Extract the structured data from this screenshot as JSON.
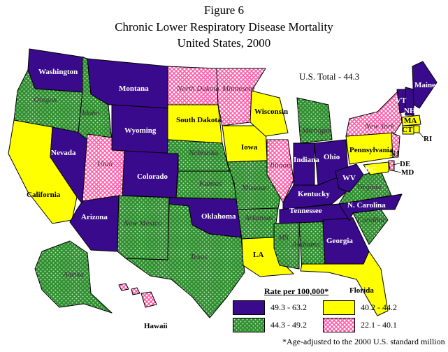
{
  "header": {
    "figure": "Figure 6",
    "title": "Chronic Lower Respiratory Disease Mortality",
    "subtitle": "United States, 2000"
  },
  "us_total": "U.S. Total - 44.3",
  "legend": {
    "title": "Rate per 100,000*",
    "items": [
      {
        "range": "49.3 - 63.2",
        "color": "#3a0a8c",
        "pattern": "solid"
      },
      {
        "range": "40.2 - 44.2",
        "color": "#ffff00",
        "pattern": "solid"
      },
      {
        "range": "44.3 - 49.2",
        "color": "#2f8f2f",
        "pattern": "dots"
      },
      {
        "range": "22.1 - 40.1",
        "color": "#ff69b4",
        "pattern": "hatch"
      }
    ]
  },
  "footnote": "*Age-adjusted to the 2000 U.S. standard million",
  "states": {
    "washington": "Washington",
    "oregon": "Oregon",
    "california": "California",
    "nevada": "Nevada",
    "idaho": "Idaho",
    "montana": "Montana",
    "wyoming": "Wyoming",
    "utah": "Utah",
    "colorado": "Colorado",
    "arizona": "Arizona",
    "new_mexico": "New Mexico",
    "north_dakota": "North Dakota",
    "south_dakota": "South Dakota",
    "nebraska": "Nebraska",
    "kansas": "Kansas",
    "oklahoma": "Oklahoma",
    "texas": "Texas",
    "minnesota": "Minnesota",
    "iowa": "Iowa",
    "missouri": "Missouri",
    "arkansas": "Arkansas",
    "la": "LA",
    "wisconsin": "Wisconsin",
    "illinois": "Illinois",
    "ms": "MS",
    "alabama": "Alabama",
    "michigan": "Michigan",
    "indiana": "Indiana",
    "ohio": "Ohio",
    "kentucky": "Kentucky",
    "tennessee": "Tennessee",
    "georgia": "Georgia",
    "florida": "Florida",
    "s_carolina": "S. Carolina",
    "n_carolina": "N. Carolina",
    "virginia": "Virginia",
    "wv": "WV",
    "pennsylvania": "Pennsylvania",
    "new_york": "New York",
    "vt": "VT",
    "nh": "NH",
    "maine": "Maine",
    "ma": "MA",
    "ct": "CT",
    "ri": "RI",
    "nj": "NJ",
    "de": "DE",
    "md": "MD",
    "dc": "DC",
    "alaska": "Alaska",
    "hawaii": "Hawaii"
  }
}
